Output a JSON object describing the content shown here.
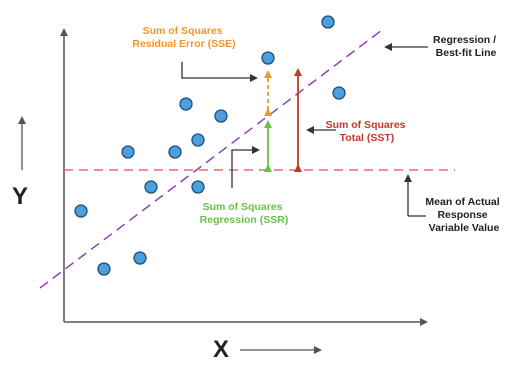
{
  "colors": {
    "axis": "#555555",
    "point_fill": "#4a9fdc",
    "point_stroke": "#1f4f7a",
    "regression_line": "#8e44ad",
    "mean_line": "#d9534f",
    "sse": "#f0962a",
    "ssr": "#6abf4b",
    "sst": "#c0392b",
    "text": "#222222"
  },
  "axes": {
    "x_label": "X",
    "y_label": "Y"
  },
  "annotations": {
    "sse": {
      "line1": "Sum of Squares",
      "line2": "Residual Error (SSE)"
    },
    "ssr": {
      "line1": "Sum of Squares",
      "line2": "Regression (SSR)"
    },
    "sst": {
      "line1": "Sum of Squares",
      "line2": "Total (SST)"
    },
    "regression": {
      "line1": "Regression /",
      "line2": "Best-fit Line"
    },
    "mean": {
      "line1": "Mean of Actual",
      "line2": "Response",
      "line3": "Variable Value"
    }
  }
}
